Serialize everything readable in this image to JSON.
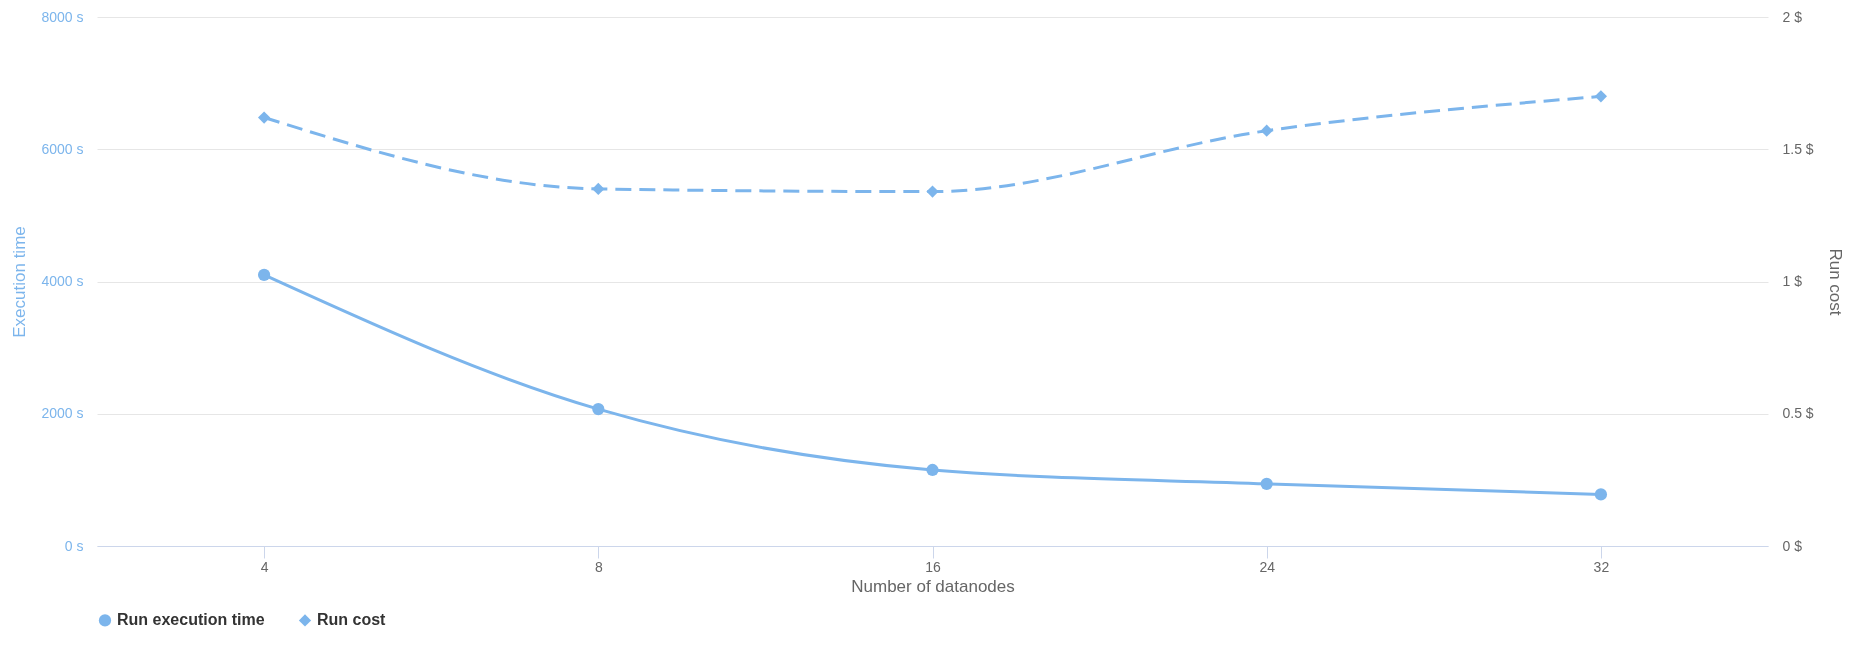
{
  "chart_data": {
    "type": "line",
    "xlabel": "Number of datanodes",
    "ylabel": "Execution time",
    "y2label": "Run cost",
    "categories": [
      "4",
      "8",
      "16",
      "24",
      "32"
    ],
    "series": [
      {
        "name": "Run execution time",
        "color": "#7cb5ec",
        "values": [
          4100,
          2070,
          1150,
          940,
          780
        ],
        "marker": "circle",
        "line_style": "solid"
      },
      {
        "name": "Run cost",
        "color": "#7cb5ec",
        "values": [
          1.62,
          1.35,
          1.34,
          1.57,
          1.7
        ],
        "axis": "y2",
        "marker": "diamond",
        "line_style": "dashed"
      }
    ],
    "ylim": [
      0,
      8000
    ],
    "yticks": [
      {
        "value": 0,
        "label": "0 s"
      },
      {
        "value": 2000,
        "label": "2000 s"
      },
      {
        "value": 4000,
        "label": "4000 s"
      },
      {
        "value": 6000,
        "label": "6000 s"
      },
      {
        "value": 8000,
        "label": "8000 s"
      }
    ],
    "y2lim": [
      0,
      2
    ],
    "y2ticks": [
      {
        "value": 0,
        "label": "0 $"
      },
      {
        "value": 0.5,
        "label": "0.5 $"
      },
      {
        "value": 1,
        "label": "1 $"
      },
      {
        "value": 1.5,
        "label": "1.5 $"
      },
      {
        "value": 2,
        "label": "2 $"
      }
    ],
    "grid": "y",
    "legend": "bottom"
  }
}
